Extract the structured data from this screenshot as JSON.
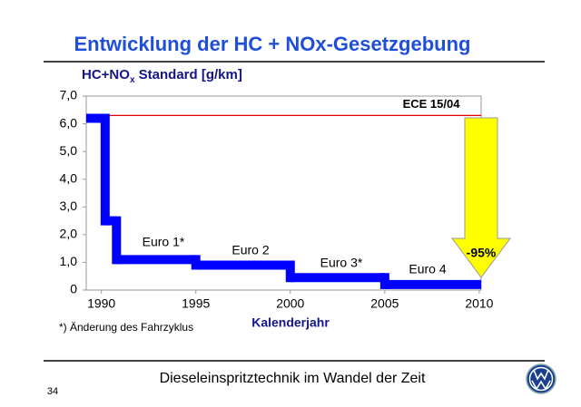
{
  "chart_data": {
    "type": "step",
    "title": "Entwicklung der HC + NOx-Gesetzgebung",
    "ylabel": [
      "HC+NO",
      "x",
      " Standard [g/km]"
    ],
    "xlabel": "Kalenderjahr",
    "x": [
      1989.2,
      1990.2,
      1990.8,
      1995,
      2000,
      2005
    ],
    "values": [
      6.2,
      2.5,
      1.1,
      0.9,
      0.45,
      0.2
    ],
    "color": "#0000ff",
    "xlim": [
      1989.2,
      2010.1
    ],
    "xticks": [
      1990,
      1995,
      2000,
      2005,
      2010
    ],
    "ylim": [
      0,
      7
    ],
    "yticks": [
      0,
      {
        "value": 1,
        "label": "1,0"
      },
      {
        "value": 2,
        "label": "2,0"
      },
      {
        "value": 3,
        "label": "3,0"
      },
      {
        "value": 4,
        "label": "4,0"
      },
      {
        "value": 5,
        "label": "5,0"
      },
      {
        "value": 6,
        "label": "6,0"
      },
      {
        "value": 7,
        "label": "7,0"
      }
    ],
    "reference": {
      "label": "ECE 15/04",
      "value": 6.3,
      "color": "#e00000"
    },
    "phase_labels": [
      "Euro 1*",
      "Euro 2",
      "Euro 3*",
      "Euro 4"
    ],
    "reduction_label": "-95%",
    "footnote": "*) Änderung des Fahrzyklus"
  },
  "footer": {
    "text": "Dieseleinspritztechnik im Wandel der Zeit",
    "page": "34"
  }
}
